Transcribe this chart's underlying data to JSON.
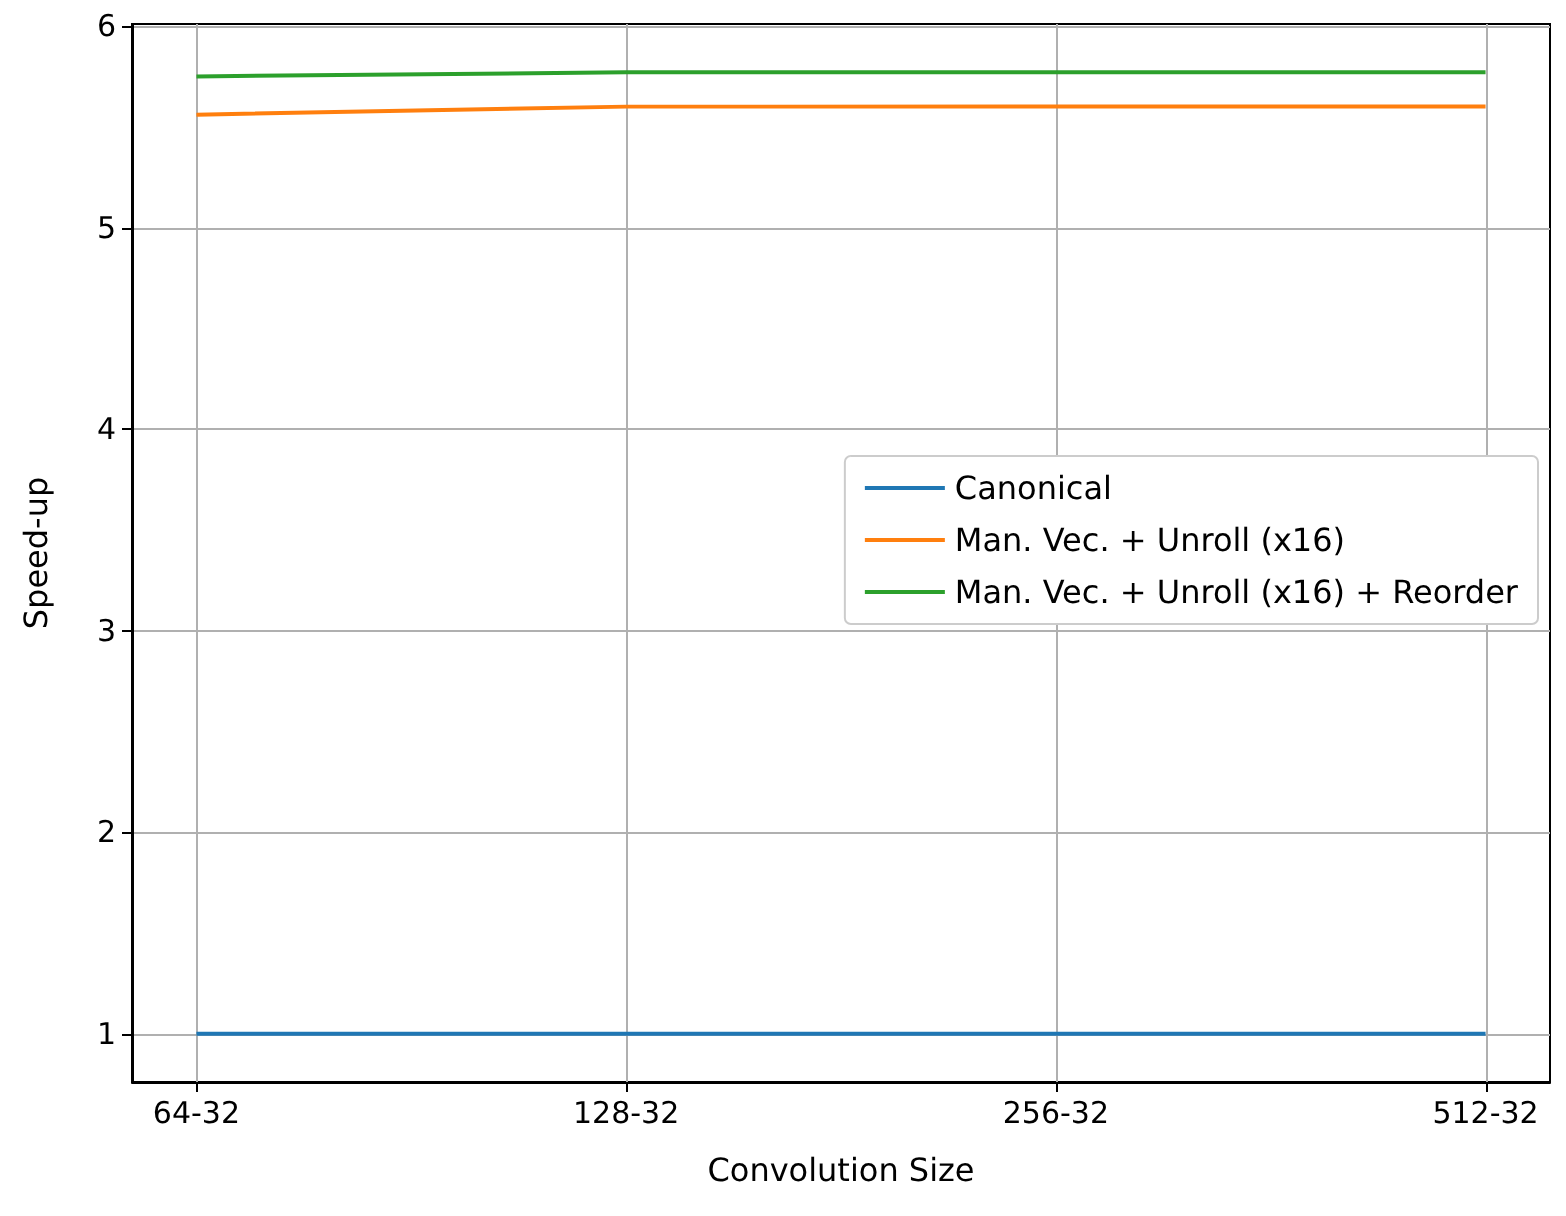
{
  "chart_data": {
    "type": "line",
    "xlabel": "Convolution Size",
    "ylabel": "Speed-up",
    "categories": [
      "64-32",
      "128-32",
      "256-32",
      "512-32"
    ],
    "series": [
      {
        "name": "Canonical",
        "color": "#1f77b4",
        "values": [
          1,
          1,
          1,
          1
        ]
      },
      {
        "name": "Man. Vec. + Unroll (x16)",
        "color": "#ff7f0e",
        "values": [
          5.56,
          5.6,
          5.6,
          5.6
        ]
      },
      {
        "name": "Man. Vec. + Unroll (x16) + Reorder",
        "color": "#2ca02c",
        "values": [
          5.75,
          5.77,
          5.77,
          5.77
        ]
      }
    ],
    "ylim": [
      0.76,
      6.01
    ],
    "yticks": [
      1,
      2,
      3,
      4,
      5,
      6
    ],
    "grid": true,
    "legend": "right",
    "marker": "none",
    "line_style": "solid"
  }
}
